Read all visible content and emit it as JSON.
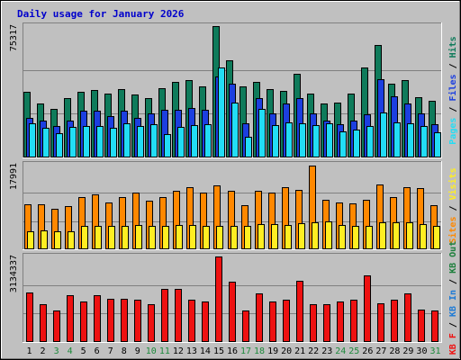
{
  "chart_data": {
    "type": "bar",
    "title": "Daily usage for January 2026",
    "categories": [
      "1",
      "2",
      "3",
      "4",
      "5",
      "6",
      "7",
      "8",
      "9",
      "10",
      "11",
      "12",
      "13",
      "14",
      "15",
      "16",
      "17",
      "18",
      "19",
      "20",
      "21",
      "22",
      "23",
      "24",
      "25",
      "26",
      "27",
      "28",
      "29",
      "30",
      "31"
    ],
    "weekend_days": [
      "3",
      "4",
      "10",
      "11",
      "17",
      "18",
      "24",
      "25",
      "31"
    ],
    "colors": {
      "background": "#c0c0c0",
      "title": "#0000cc",
      "hits": "#0f7b5b",
      "files": "#1c3fe0",
      "pages": "#22ddf5",
      "visits": "#ff8800",
      "sites": "#ffee22",
      "kbin": "#1c7ad6",
      "kbout": "#1d7f3c",
      "kbf": "#ee1111",
      "weekday_tick": "#000000",
      "weekend_tick": "#1d8a3c"
    },
    "panels": [
      {
        "name": "hits-files-pages",
        "ymax_label": "75317",
        "ylim": [
          0,
          75317
        ],
        "right_label_parts": [
          {
            "text": "Pages",
            "color_key": "pages"
          },
          {
            "text": " / ",
            "color_key": "sep"
          },
          {
            "text": "Files",
            "color_key": "files"
          },
          {
            "text": " / ",
            "color_key": "sep"
          },
          {
            "text": "Hits",
            "color_key": "hits"
          }
        ],
        "series": [
          {
            "name": "Hits",
            "color_key": "hits",
            "values": [
              37800,
              31100,
              28100,
              33800,
              37800,
              38500,
              36400,
              39100,
              35900,
              33800,
              39500,
              43500,
              44600,
              40500,
              75300,
              55700,
              40500,
              43500,
              39100,
              38400,
              48000,
              36400,
              31000,
              31500,
              36800,
              51500,
              64500,
              42400,
              44400,
              34500,
              32300
            ]
          },
          {
            "name": "Files",
            "color_key": "files",
            "values": [
              22600,
              20900,
              18200,
              20900,
              26800,
              26800,
              23500,
              26800,
              22600,
              25200,
              27400,
              27400,
              28500,
              27400,
              46400,
              42400,
              19600,
              33800,
              25200,
              30800,
              33800,
              25200,
              20900,
              18900,
              20900,
              24800,
              44900,
              35100,
              30800,
              25200,
              18900
            ]
          },
          {
            "name": "Pages",
            "color_key": "pages",
            "values": [
              19600,
              17200,
              13900,
              17500,
              17800,
              17800,
              16800,
              19600,
              17800,
              19000,
              13200,
              17600,
              18500,
              18900,
              51600,
              31700,
              11700,
              27800,
              18500,
              20000,
              19600,
              18500,
              19500,
              15200,
              15900,
              17800,
              25600,
              20000,
              19600,
              18100,
              14500
            ]
          }
        ]
      },
      {
        "name": "visits-sites",
        "ymax_label": "17991",
        "ylim": [
          0,
          17991
        ],
        "right_label_parts": [
          {
            "text": "Sites",
            "color_key": "visits"
          },
          {
            "text": " / ",
            "color_key": "sep"
          },
          {
            "text": "Visits",
            "color_key": "sites"
          }
        ],
        "series": [
          {
            "name": "Visits",
            "color_key": "visits",
            "values": [
              9600,
              9600,
              8600,
              9100,
              11100,
              11700,
              9900,
              11100,
              12000,
              10300,
              11100,
              12400,
              13200,
              12000,
              13500,
              12400,
              9400,
              12400,
              12100,
              13200,
              12700,
              17800,
              10600,
              9900,
              9800,
              10600,
              13800,
              11100,
              13200,
              13000,
              9400
            ]
          },
          {
            "name": "Sites",
            "color_key": "sites",
            "values": [
              3900,
              4000,
              3800,
              3800,
              4900,
              4900,
              4900,
              5000,
              5100,
              5000,
              5000,
              5200,
              5100,
              4900,
              4900,
              4900,
              4900,
              5400,
              5400,
              5200,
              5500,
              5700,
              6000,
              5200,
              4900,
              4900,
              5700,
              5800,
              5700,
              5300,
              4900
            ]
          }
        ]
      },
      {
        "name": "kbf-kbin-kbout",
        "ymax_label": "3134337",
        "ylim": [
          0,
          3134337
        ],
        "right_label_parts": [
          {
            "text": "KB F",
            "color_key": "kbf"
          },
          {
            "text": " / ",
            "color_key": "sep"
          },
          {
            "text": "KB In",
            "color_key": "kbin"
          },
          {
            "text": " / ",
            "color_key": "sep"
          },
          {
            "text": "KB Out",
            "color_key": "kbout"
          }
        ],
        "series": [
          {
            "name": "KB F",
            "color_key": "kbf",
            "values": [
              1830000,
              1380000,
              1140000,
              1710000,
              1490000,
              1710000,
              1600000,
              1600000,
              1540000,
              1370000,
              1940000,
              1940000,
              1540000,
              1490000,
              3130000,
              2200000,
              1140000,
              1780000,
              1490000,
              1540000,
              2230000,
              1370000,
              1370000,
              1490000,
              1540000,
              2430000,
              1420000,
              1540000,
              1780000,
              1200000,
              1140000
            ]
          }
        ]
      }
    ]
  }
}
